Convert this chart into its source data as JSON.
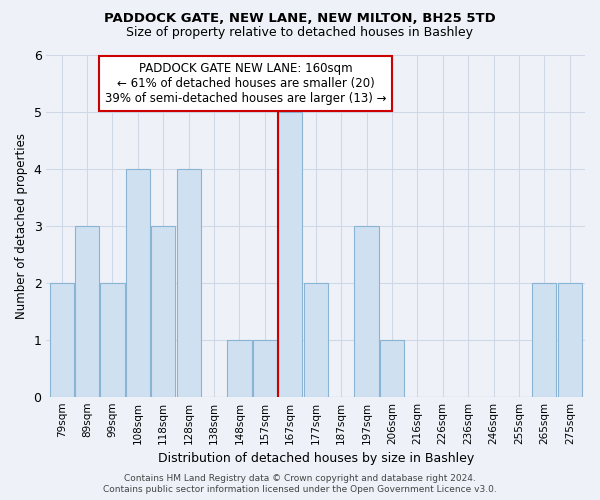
{
  "title": "PADDOCK GATE, NEW LANE, NEW MILTON, BH25 5TD",
  "subtitle": "Size of property relative to detached houses in Bashley",
  "xlabel": "Distribution of detached houses by size in Bashley",
  "ylabel": "Number of detached properties",
  "bar_fill_color": "#cfe0f0",
  "bar_edge_color": "#8ab4d4",
  "categories": [
    "79sqm",
    "89sqm",
    "99sqm",
    "108sqm",
    "118sqm",
    "128sqm",
    "138sqm",
    "148sqm",
    "157sqm",
    "167sqm",
    "177sqm",
    "187sqm",
    "197sqm",
    "206sqm",
    "216sqm",
    "226sqm",
    "236sqm",
    "246sqm",
    "255sqm",
    "265sqm",
    "275sqm"
  ],
  "values": [
    2,
    3,
    2,
    4,
    3,
    4,
    0,
    1,
    1,
    5,
    2,
    0,
    3,
    1,
    0,
    0,
    0,
    0,
    0,
    2,
    2
  ],
  "ylim": [
    0,
    6
  ],
  "yticks": [
    0,
    1,
    2,
    3,
    4,
    5,
    6
  ],
  "reference_line_x": 8.5,
  "annotation_title": "PADDOCK GATE NEW LANE: 160sqm",
  "annotation_line1": "← 61% of detached houses are smaller (20)",
  "annotation_line2": "39% of semi-detached houses are larger (13) →",
  "annotation_box_color": "#ffffff",
  "annotation_box_edge": "#cc0000",
  "ref_line_color": "#cc0000",
  "footer1": "Contains HM Land Registry data © Crown copyright and database right 2024.",
  "footer2": "Contains public sector information licensed under the Open Government Licence v3.0.",
  "bg_color": "#eef2f8",
  "grid_color": "#d0d8e8"
}
